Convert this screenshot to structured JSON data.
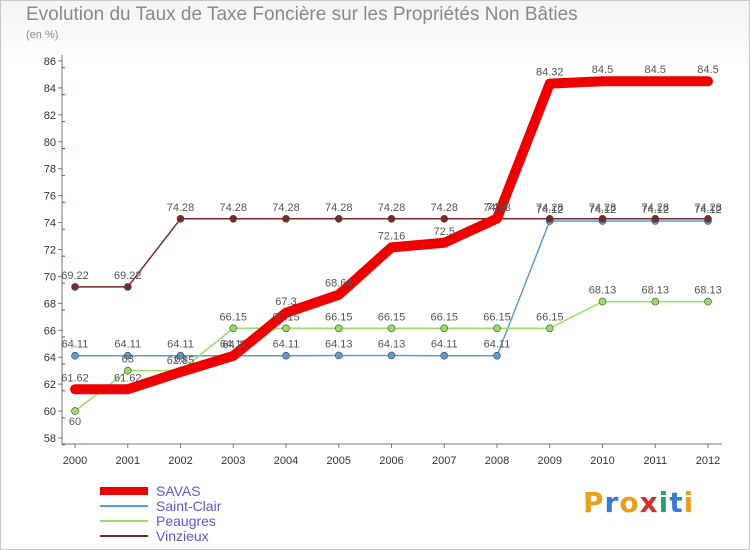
{
  "chart_data": {
    "type": "line",
    "title": "Evolution du Taux de Taxe Foncière sur les Propriétés Non Bâties",
    "ylabel": "(en %)",
    "categories": [
      "2000",
      "2001",
      "2002",
      "2003",
      "2004",
      "2005",
      "2006",
      "2007",
      "2008",
      "2009",
      "2010",
      "2011",
      "2012"
    ],
    "ylim": [
      58,
      86
    ],
    "yticks": [
      "58",
      "60",
      "62",
      "64",
      "66",
      "68",
      "70",
      "72",
      "74",
      "76",
      "78",
      "80",
      "82",
      "84",
      "86"
    ],
    "series": [
      {
        "name": "SAVAS",
        "color": "#ee0000",
        "values": [
          61.62,
          61.62,
          62.9,
          64.1,
          67.3,
          68.64,
          72.16,
          72.5,
          74.3,
          84.32,
          84.5,
          84.5,
          84.5
        ],
        "labels": [
          "61.62",
          "61.62",
          "62.85",
          "64.1",
          "67.3",
          "68.64",
          "72.16",
          "72.5",
          "74.3",
          "84.32",
          "84.5",
          "84.5",
          "84.5"
        ]
      },
      {
        "name": "Saint-Clair",
        "color": "#5b9bd5",
        "values": [
          64.11,
          64.11,
          64.11,
          64.11,
          64.11,
          64.13,
          64.13,
          64.11,
          64.11,
          74.12,
          74.12,
          74.12,
          74.12
        ],
        "labels": [
          "64.11",
          "64.11",
          "64.11",
          "64.11",
          "64.11",
          "64.13",
          "64.13",
          "64.11",
          "64.11",
          "74.12",
          "74.12",
          "74.12",
          "74.12"
        ]
      },
      {
        "name": "Peaugres",
        "color": "#99dd66",
        "values": [
          60,
          63,
          63,
          66.15,
          66.15,
          66.15,
          66.15,
          66.15,
          66.15,
          66.15,
          68.13,
          68.13,
          68.13
        ],
        "labels": [
          "60",
          "63",
          "63",
          "66.15",
          "66.15",
          "66.15",
          "66.15",
          "66.15",
          "66.15",
          "66.15",
          "68.13",
          "68.13",
          "68.13"
        ]
      },
      {
        "name": "Vinzieux",
        "color": "#7a2a2a",
        "values": [
          69.22,
          69.22,
          74.28,
          74.28,
          74.28,
          74.28,
          74.28,
          74.28,
          74.28,
          74.28,
          74.28,
          74.28,
          74.28
        ],
        "labels": [
          "69.22",
          "69.22",
          "74.28",
          "74.28",
          "74.28",
          "74.28",
          "74.28",
          "74.28",
          "74.28",
          "74.28",
          "74.28",
          "74.28",
          "74.28"
        ]
      }
    ],
    "grid": false,
    "legend_position": "bottom-left"
  },
  "legend": [
    "SAVAS",
    "Saint-Clair",
    "Peaugres",
    "Vinzieux"
  ],
  "logo": "Proxiti"
}
